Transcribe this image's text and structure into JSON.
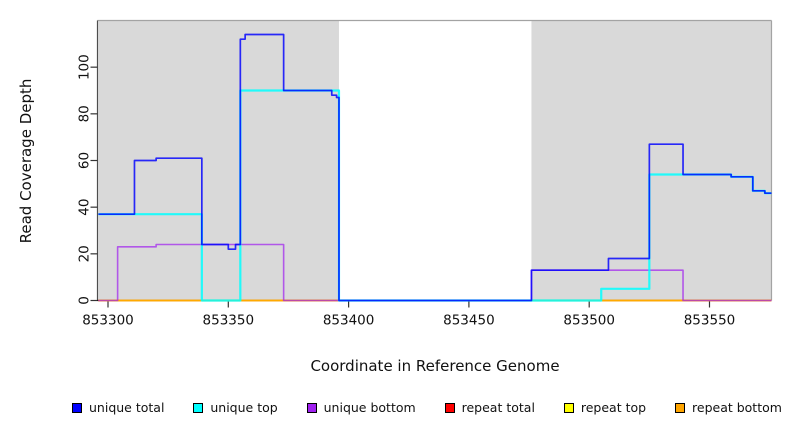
{
  "figure": {
    "x_axis_title": "Coordinate in Reference Genome",
    "y_axis_title": "Read Coverage Depth",
    "background_color": "#ffffff",
    "shaded_region_color": "#d9d9d9"
  },
  "axes": {
    "x": {
      "range": [
        853296,
        853576
      ],
      "ticks": [
        {
          "value": 853300,
          "label": "853300"
        },
        {
          "value": 853350,
          "label": "853350"
        },
        {
          "value": 853400,
          "label": "853400"
        },
        {
          "value": 853450,
          "label": "853450"
        },
        {
          "value": 853500,
          "label": "853500"
        },
        {
          "value": 853550,
          "label": "853550"
        }
      ]
    },
    "y": {
      "range": [
        0,
        120
      ],
      "ticks": [
        {
          "value": 0,
          "label": "0"
        },
        {
          "value": 20,
          "label": "20"
        },
        {
          "value": 40,
          "label": "40"
        },
        {
          "value": 60,
          "label": "60"
        },
        {
          "value": 80,
          "label": "80"
        },
        {
          "value": 100,
          "label": "100"
        }
      ]
    }
  },
  "legend": [
    {
      "label": "unique total",
      "color": "#0000FF"
    },
    {
      "label": "unique top",
      "color": "#00FFFF"
    },
    {
      "label": "unique bottom",
      "color": "#A020F0"
    },
    {
      "label": "repeat total",
      "color": "#FF0000"
    },
    {
      "label": "repeat top",
      "color": "#FFFF00"
    },
    {
      "label": "repeat bottom",
      "color": "#FFA500"
    }
  ],
  "chart_data": {
    "type": "line",
    "style": "step-after",
    "title": "",
    "xlabel": "Coordinate in Reference Genome",
    "ylabel": "Read Coverage Depth",
    "xlim": [
      853296,
      853576
    ],
    "ylim": [
      0,
      120
    ],
    "grid": false,
    "legend_position": "bottom",
    "shaded_x_regions": [
      [
        853296,
        853396
      ],
      [
        853476,
        853576
      ]
    ],
    "x_end": 853576,
    "series": [
      {
        "name": "repeat total",
        "color": "#FF0000",
        "steps": [
          [
            853296,
            0
          ]
        ]
      },
      {
        "name": "repeat top",
        "color": "#FFFF00",
        "steps": [
          [
            853296,
            0
          ]
        ]
      },
      {
        "name": "repeat bottom",
        "color": "#FFA500",
        "steps": [
          [
            853296,
            0
          ]
        ]
      },
      {
        "name": "unique bottom",
        "color": "#A020F0",
        "steps": [
          [
            853296,
            0
          ],
          [
            853304,
            23
          ],
          [
            853320,
            24
          ],
          [
            853373,
            0
          ],
          [
            853476,
            13
          ],
          [
            853539,
            0
          ]
        ]
      },
      {
        "name": "unique top",
        "color": "#00FFFF",
        "steps": [
          [
            853296,
            37
          ],
          [
            853339,
            0
          ],
          [
            853355,
            90
          ],
          [
            853396,
            0
          ],
          [
            853505,
            5
          ],
          [
            853525,
            54
          ],
          [
            853539,
            54
          ],
          [
            853559,
            53
          ],
          [
            853568,
            47
          ],
          [
            853573,
            46
          ]
        ]
      },
      {
        "name": "unique total",
        "color": "#0000FF",
        "steps": [
          [
            853296,
            37
          ],
          [
            853311,
            60
          ],
          [
            853320,
            61
          ],
          [
            853339,
            24
          ],
          [
            853350,
            22
          ],
          [
            853353,
            24
          ],
          [
            853355,
            112
          ],
          [
            853357,
            114
          ],
          [
            853373,
            90
          ],
          [
            853393,
            88
          ],
          [
            853395,
            87
          ],
          [
            853396,
            0
          ],
          [
            853476,
            13
          ],
          [
            853508,
            18
          ],
          [
            853525,
            67
          ],
          [
            853539,
            54
          ],
          [
            853559,
            53
          ],
          [
            853568,
            47
          ],
          [
            853573,
            46
          ]
        ]
      }
    ]
  }
}
